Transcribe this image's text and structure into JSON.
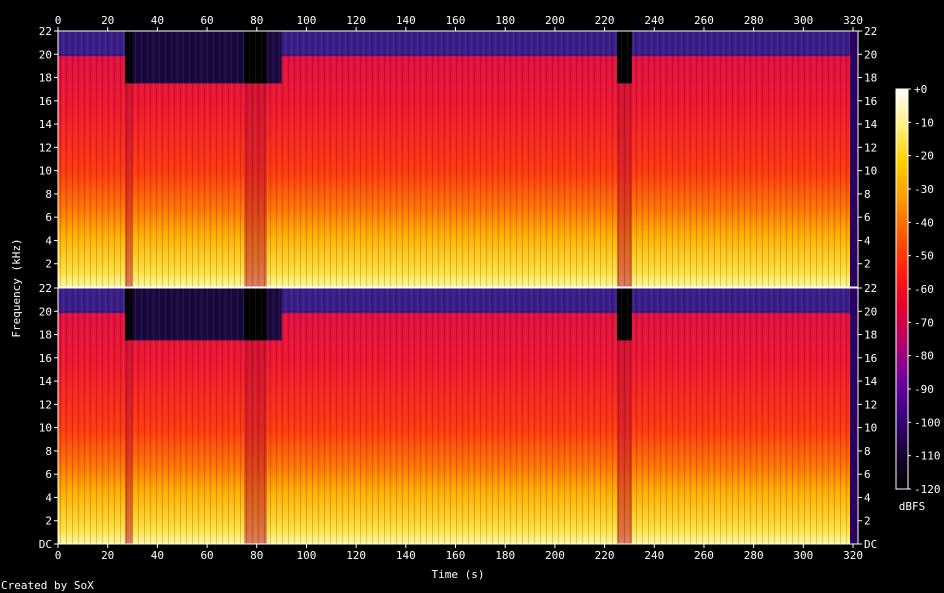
{
  "chart_data": {
    "type": "heatmap",
    "xlabel": "Time (s)",
    "ylabel": "Frequency (kHz)",
    "x_ticks": [
      0,
      20,
      40,
      60,
      80,
      100,
      120,
      140,
      160,
      180,
      200,
      220,
      240,
      260,
      280,
      300,
      320
    ],
    "xlim": [
      0,
      322
    ],
    "channels": [
      {
        "y_tick_labels": [
          "22",
          "20",
          "18",
          "16",
          "14",
          "12",
          "10",
          "8",
          "6",
          "4",
          "2"
        ]
      },
      {
        "y_tick_labels": [
          "22",
          "20",
          "18",
          "16",
          "14",
          "12",
          "10",
          "8",
          "6",
          "4",
          "2",
          "DC"
        ]
      }
    ],
    "ylim": [
      0,
      22
    ],
    "colorbar": {
      "label": "dBFS",
      "ticks": [
        "+0",
        "-10",
        "-20",
        "-30",
        "-40",
        "-50",
        "-60",
        "-70",
        "-80",
        "-90",
        "-100",
        "-110",
        "-120"
      ],
      "range": [
        -120,
        0
      ],
      "colors": [
        "#000000",
        "#1a0033",
        "#3a0080",
        "#7000a0",
        "#b0006a",
        "#e00030",
        "#ff2010",
        "#ff5a00",
        "#ff9a00",
        "#ffd000",
        "#fff080",
        "#ffffff"
      ]
    },
    "quiet_segments_s": [
      [
        27,
        30
      ],
      [
        75,
        84
      ],
      [
        225,
        231
      ]
    ],
    "cutoff_change_s": [
      [
        0,
        27,
        20
      ],
      [
        30,
        90,
        17.5
      ],
      [
        90,
        298,
        20
      ],
      [
        298,
        322,
        20
      ]
    ]
  },
  "credit": "Created by SoX"
}
